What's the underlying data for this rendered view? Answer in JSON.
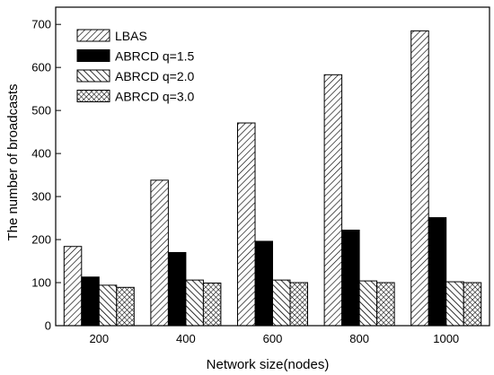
{
  "chart_data": {
    "type": "bar",
    "title": "",
    "xlabel": "Network size(nodes)",
    "ylabel": "The number of broadcasts",
    "categories": [
      "200",
      "400",
      "600",
      "800",
      "1000"
    ],
    "ylim": [
      0,
      740
    ],
    "yticks": [
      0,
      100,
      200,
      300,
      400,
      500,
      600,
      700
    ],
    "grid": false,
    "legend_position": "top-left",
    "series": [
      {
        "name": "LBAS",
        "pattern": "diagonal-forward",
        "values": [
          184,
          338,
          471,
          583,
          685
        ]
      },
      {
        "name": "ABRCD q=1.5",
        "pattern": "solid-black",
        "values": [
          113,
          170,
          196,
          222,
          251
        ]
      },
      {
        "name": "ABRCD q=2.0",
        "pattern": "diagonal-backward",
        "values": [
          94,
          106,
          106,
          104,
          102
        ]
      },
      {
        "name": "ABRCD q=3.0",
        "pattern": "crosshatch",
        "values": [
          89,
          99,
          100,
          100,
          100
        ]
      }
    ]
  }
}
